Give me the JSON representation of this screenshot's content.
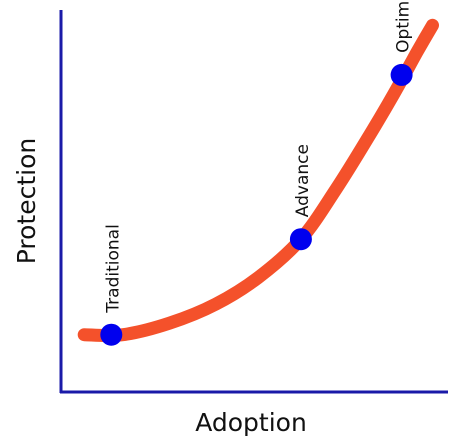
{
  "chart_data": {
    "type": "line",
    "title": "",
    "xlabel": "Adoption",
    "ylabel": "Protection",
    "grid": false,
    "legend": "none",
    "curve_color": "#f4512b",
    "point_color": "#0000ee",
    "axis_color": "#1a1aa8",
    "xlim": [
      0,
      10
    ],
    "ylim": [
      0,
      10
    ],
    "curve": {
      "x": [
        0.6,
        1.6,
        2.8,
        4.0,
        5.1,
        6.2,
        7.1,
        7.9,
        8.6,
        9.2,
        9.6
      ],
      "y": [
        1.5,
        1.5,
        1.8,
        2.3,
        3.0,
        4.0,
        5.3,
        6.6,
        7.8,
        8.9,
        9.6
      ]
    },
    "points": [
      {
        "label": "Traditional",
        "x": 1.3,
        "y": 1.5
      },
      {
        "label": "Advance",
        "x": 6.2,
        "y": 4.0
      },
      {
        "label": "Optimal",
        "x": 8.8,
        "y": 8.3
      }
    ]
  }
}
